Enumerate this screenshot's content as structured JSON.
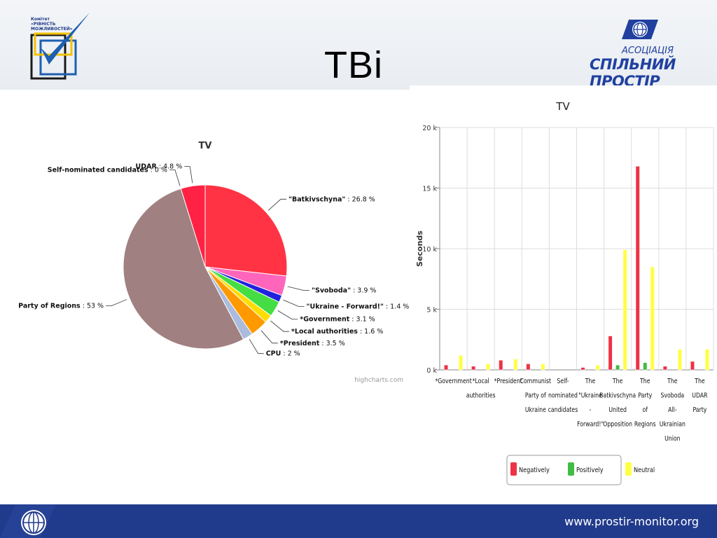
{
  "slide": {
    "title": "ТВі",
    "left_logo_text": [
      "Комітет",
      "«РІВНІСТЬ",
      "МОЖЛИВОСТЕЙ»"
    ],
    "right_logo_small": "АСОЦІАЦІЯ",
    "right_logo_big": "СПІЛЬНИЙ ПРОСТІР",
    "footer_url": "www.prostir-monitor.org"
  },
  "chart_data": [
    {
      "type": "pie",
      "title": "TV",
      "credit": "highcharts.com",
      "slices": [
        {
          "label": "\"Batkivschyna\"",
          "value": 26.8,
          "color": "#ff3344"
        },
        {
          "label": "\"Svoboda\"",
          "value": 3.9,
          "color": "#ff66bb"
        },
        {
          "label": "\"Ukraine - Forward!\"",
          "value": 1.4,
          "color": "#2222dd"
        },
        {
          "label": "*Government",
          "value": 3.1,
          "color": "#44dd44"
        },
        {
          "label": "*Local authorities",
          "value": 1.6,
          "color": "#ffdd00"
        },
        {
          "label": "*President",
          "value": 3.5,
          "color": "#ff9900"
        },
        {
          "label": "CPU",
          "value": 2,
          "color": "#aabbdd"
        },
        {
          "label": "Party of Regions",
          "value": 53,
          "color": "#a08080"
        },
        {
          "label": "Self-nominated candidates",
          "value": 0,
          "color": "#dddddd"
        },
        {
          "label": "UDAR",
          "value": 4.8,
          "color": "#ff2244"
        }
      ],
      "value_suffix": " %"
    },
    {
      "type": "bar",
      "title": "TV",
      "ylabel": "Seconds",
      "ylim": [
        0,
        20000
      ],
      "yticks": [
        "0 k",
        "5 k",
        "10 k",
        "15 k",
        "20 k"
      ],
      "categories": [
        "*Government",
        "*Local authorities",
        "*President",
        "Communist Party of Ukraine",
        "Self-nominated candidates",
        "The \"Ukraine - Forward!\"",
        "The Batkivschyna United Opposition",
        "The Party of Regions",
        "The Svoboda All-Ukrainian Union",
        "The UDAR Party"
      ],
      "category_lines": [
        [
          "*Government"
        ],
        [
          "*Local",
          "authorities"
        ],
        [
          "*President"
        ],
        [
          "Communist",
          "Party of",
          "Ukraine"
        ],
        [
          "Self-",
          "nominated",
          "candidates"
        ],
        [
          "The",
          "\"Ukraine",
          "-",
          "Forward!\""
        ],
        [
          "The",
          "Batkivschyna",
          "United",
          "Opposition"
        ],
        [
          "The",
          "Party",
          "of",
          "Regions"
        ],
        [
          "The",
          "Svoboda",
          "All-",
          "Ukrainian",
          "Union"
        ],
        [
          "The",
          "UDAR",
          "Party"
        ]
      ],
      "series": [
        {
          "name": "Negatively",
          "color": "#ee3344",
          "values": [
            400,
            300,
            800,
            500,
            0,
            200,
            2800,
            16800,
            300,
            700
          ]
        },
        {
          "name": "Positively",
          "color": "#44bb44",
          "values": [
            0,
            0,
            0,
            0,
            0,
            0,
            400,
            600,
            0,
            0
          ]
        },
        {
          "name": "Neutral",
          "color": "#ffff44",
          "values": [
            1200,
            500,
            900,
            500,
            0,
            400,
            9900,
            8500,
            1700,
            1700
          ]
        }
      ],
      "legend_position": "bottom"
    }
  ]
}
